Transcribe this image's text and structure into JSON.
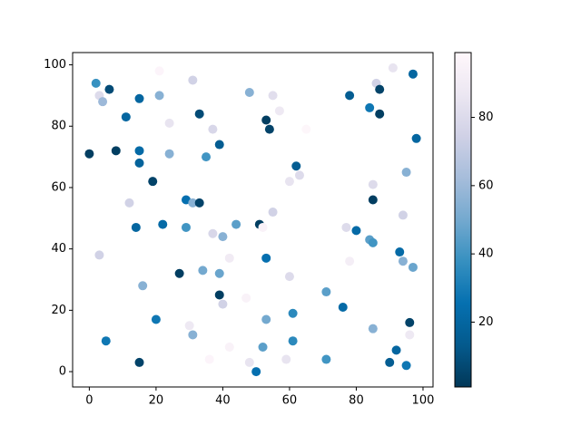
{
  "chart_data": {
    "type": "scatter",
    "x": [
      2,
      3,
      4,
      6,
      0,
      8,
      11,
      15,
      21,
      21,
      24,
      31,
      33,
      37,
      39,
      24,
      15,
      15,
      35,
      48,
      53,
      54,
      55,
      57,
      65,
      78,
      84,
      86,
      87,
      87,
      91,
      97,
      98,
      62,
      63,
      60,
      55,
      51,
      52,
      44,
      40,
      37,
      42,
      29,
      29,
      31,
      33,
      22,
      14,
      12,
      19,
      3,
      16,
      27,
      34,
      39,
      39,
      40,
      47,
      53,
      60,
      53,
      61,
      71,
      76,
      77,
      80,
      78,
      84,
      85,
      85,
      85,
      95,
      94,
      93,
      94,
      97,
      96,
      96,
      85,
      92,
      90,
      95,
      71,
      59,
      61,
      52,
      48,
      50,
      42,
      36,
      31,
      30,
      20,
      15,
      5
    ],
    "values": [
      94,
      90,
      88,
      92,
      71,
      72,
      83,
      89,
      98,
      90,
      81,
      95,
      84,
      79,
      74,
      71,
      72,
      68,
      70,
      91,
      82,
      79,
      90,
      85,
      79,
      90,
      86,
      94,
      92,
      84,
      99,
      97,
      76,
      67,
      64,
      62,
      52,
      48,
      47,
      48,
      44,
      45,
      37,
      47,
      56,
      55,
      55,
      48,
      47,
      55,
      62,
      38,
      28,
      32,
      33,
      32,
      25,
      22,
      24,
      37,
      31,
      17,
      19,
      26,
      21,
      47,
      46,
      36,
      43,
      42,
      56,
      61,
      65,
      51,
      39,
      36,
      34,
      16,
      12,
      14,
      7,
      3,
      2,
      4,
      4,
      10,
      8,
      3,
      0,
      8,
      4,
      12,
      15,
      17,
      3,
      10
    ],
    "color_values": [
      38,
      80,
      60,
      8,
      3,
      3,
      20,
      20,
      97,
      55,
      85,
      75,
      8,
      78,
      15,
      55,
      22,
      18,
      40,
      55,
      3,
      5,
      82,
      88,
      98,
      15,
      28,
      75,
      5,
      3,
      85,
      20,
      20,
      15,
      80,
      85,
      75,
      3,
      95,
      45,
      55,
      78,
      90,
      40,
      25,
      55,
      5,
      22,
      20,
      75,
      5,
      75,
      55,
      3,
      50,
      48,
      3,
      75,
      95,
      25,
      80,
      50,
      35,
      45,
      22,
      80,
      22,
      92,
      45,
      40,
      3,
      80,
      55,
      75,
      22,
      55,
      48,
      5,
      88,
      55,
      20,
      15,
      28,
      40,
      85,
      35,
      45,
      85,
      25,
      95,
      97,
      55,
      88,
      28,
      5,
      28
    ],
    "colormap": [
      "#023858",
      "#045a8d",
      "#0570b0",
      "#3690c0",
      "#74a9cf",
      "#a6bddb",
      "#d0d1e6",
      "#ece7f2",
      "#fff7fb"
    ],
    "clim": [
      1,
      99
    ],
    "cticks": [
      20,
      40,
      60,
      80
    ],
    "xlim": [
      -5,
      103
    ],
    "xticks": [
      0,
      20,
      40,
      60,
      80,
      100
    ],
    "ylim": [
      -5,
      104
    ],
    "yticks": [
      0,
      20,
      40,
      60,
      80,
      100
    ]
  }
}
